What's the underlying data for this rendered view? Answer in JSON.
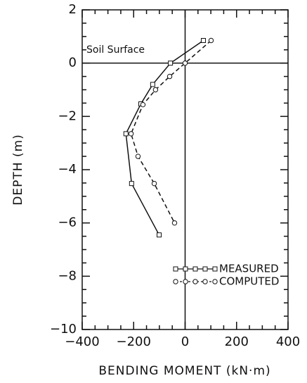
{
  "chart_data": {
    "type": "line",
    "xlabel": "BENDING MOMENT (kN·m)",
    "ylabel": "DEPTH (m)",
    "annotation": "Soil Surface",
    "xlim": [
      -400,
      400
    ],
    "ylim": [
      -10,
      2
    ],
    "xticks": [
      {
        "value": -400,
        "label": "−400"
      },
      {
        "value": -200,
        "label": "−200"
      },
      0,
      200,
      400
    ],
    "yticks": [
      {
        "value": -10,
        "label": "−10"
      },
      {
        "value": -8,
        "label": "−8"
      },
      {
        "value": -6,
        "label": "−6"
      },
      {
        "value": -4,
        "label": "−4"
      },
      {
        "value": -2,
        "label": "−2"
      },
      0,
      2
    ],
    "series": [
      {
        "name": "MEASURED",
        "color": "#111111",
        "marker": "square",
        "dashed": false,
        "x": [
          71,
          -57,
          -126,
          -172,
          -230,
          -208,
          -101
        ],
        "values": [
          0.85,
          0,
          -0.8,
          -1.53,
          -2.65,
          -4.52,
          -6.45
        ]
      },
      {
        "name": "COMPUTED",
        "color": "#111111",
        "marker": "circle",
        "dashed": true,
        "x": [
          101,
          0,
          -60,
          -115,
          -164,
          -210,
          -183,
          -120,
          -41
        ],
        "values": [
          0.85,
          0,
          -0.5,
          -1.0,
          -1.56,
          -2.65,
          -3.5,
          -4.52,
          -6.0
        ]
      }
    ]
  }
}
